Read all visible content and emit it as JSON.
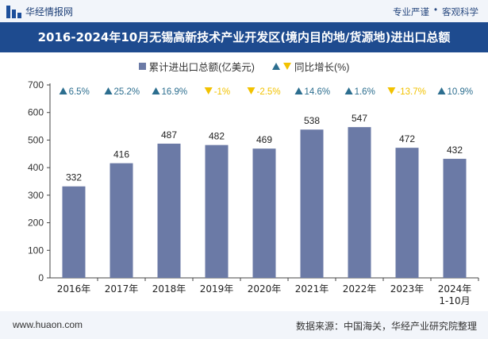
{
  "header": {
    "brand": "华经情报网",
    "tags": [
      "专业严谨",
      "•",
      "客观科学"
    ],
    "title": "2016-2024年10月无锡高新技术产业开发区(境内目的地/货源地)进出口总额"
  },
  "legend": {
    "bar_label": "累计进出口总额(亿美元)",
    "line_label": "同比增长(%)"
  },
  "footer": {
    "website": "www.huaon.com",
    "source": "数据来源：中国海关，华经产业研究院整理"
  },
  "colors": {
    "bar": "#6b7aa6",
    "up": "#2c6e8f",
    "down": "#f2c200",
    "title_bg": "#1e4b8f"
  },
  "chart_data": {
    "type": "bar",
    "categories": [
      "2016年",
      "2017年",
      "2018年",
      "2019年",
      "2020年",
      "2021年",
      "2022年",
      "2023年",
      "2024年\n1-10月"
    ],
    "series": [
      {
        "name": "累计进出口总额(亿美元)",
        "values": [
          332,
          416,
          487,
          482,
          469,
          538,
          547,
          472,
          432
        ]
      },
      {
        "name": "同比增长(%)",
        "values": [
          6.5,
          25.2,
          16.9,
          -1,
          -2.5,
          14.6,
          1.6,
          -13.7,
          10.9
        ]
      }
    ],
    "growth_labels": [
      "6.5%",
      "25.2%",
      "16.9%",
      "-1%",
      "-2.5%",
      "14.6%",
      "1.6%",
      "-13.7%",
      "10.9%"
    ],
    "ylim": [
      0,
      700
    ],
    "yticks": [
      0,
      100,
      200,
      300,
      400,
      500,
      600,
      700
    ],
    "grid": false
  }
}
